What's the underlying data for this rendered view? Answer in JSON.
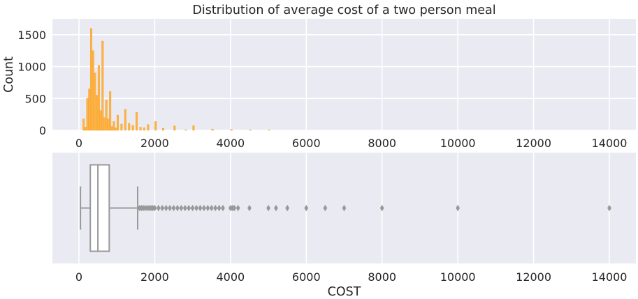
{
  "chart_data": [
    {
      "type": "histogram",
      "title": "Distribution of average cost of a two person meal",
      "xlabel": "",
      "ylabel": "Count",
      "xlim": [
        -700,
        14700
      ],
      "ylim": [
        0,
        1750
      ],
      "x_ticks": [
        0,
        2000,
        4000,
        6000,
        8000,
        10000,
        12000,
        14000
      ],
      "y_ticks": [
        0,
        500,
        1000,
        1500
      ],
      "grid": true,
      "bar_color": "#ffb347",
      "bar_edge_color": "#f0a020",
      "background": "#eaeaf2",
      "bin_width": 48,
      "bins": [
        {
          "x": 100,
          "count": 180
        },
        {
          "x": 150,
          "count": 50
        },
        {
          "x": 200,
          "count": 500
        },
        {
          "x": 250,
          "count": 650
        },
        {
          "x": 300,
          "count": 1600
        },
        {
          "x": 350,
          "count": 1250
        },
        {
          "x": 400,
          "count": 900
        },
        {
          "x": 450,
          "count": 550
        },
        {
          "x": 500,
          "count": 1020
        },
        {
          "x": 550,
          "count": 310
        },
        {
          "x": 600,
          "count": 1400
        },
        {
          "x": 650,
          "count": 200
        },
        {
          "x": 700,
          "count": 480
        },
        {
          "x": 750,
          "count": 180
        },
        {
          "x": 800,
          "count": 610
        },
        {
          "x": 850,
          "count": 60
        },
        {
          "x": 900,
          "count": 140
        },
        {
          "x": 950,
          "count": 40
        },
        {
          "x": 1000,
          "count": 240
        },
        {
          "x": 1100,
          "count": 100
        },
        {
          "x": 1200,
          "count": 330
        },
        {
          "x": 1300,
          "count": 110
        },
        {
          "x": 1400,
          "count": 80
        },
        {
          "x": 1500,
          "count": 280
        },
        {
          "x": 1600,
          "count": 50
        },
        {
          "x": 1700,
          "count": 40
        },
        {
          "x": 1800,
          "count": 90
        },
        {
          "x": 2000,
          "count": 140
        },
        {
          "x": 2200,
          "count": 30
        },
        {
          "x": 2500,
          "count": 70
        },
        {
          "x": 2800,
          "count": 10
        },
        {
          "x": 3000,
          "count": 75
        },
        {
          "x": 3500,
          "count": 20
        },
        {
          "x": 4000,
          "count": 15
        },
        {
          "x": 4500,
          "count": 10
        },
        {
          "x": 5000,
          "count": 8
        }
      ]
    },
    {
      "type": "boxplot",
      "xlabel": "COST",
      "xlim": [
        -700,
        14700
      ],
      "x_ticks": [
        0,
        2000,
        4000,
        6000,
        8000,
        10000,
        12000,
        14000
      ],
      "grid": true,
      "box_color": "#ffffff",
      "line_color": "#999999",
      "background": "#eaeaf2",
      "whisker_low": 40,
      "q1": 300,
      "median": 500,
      "q3": 800,
      "whisker_high": 1550,
      "outliers": [
        1600,
        1650,
        1700,
        1750,
        1800,
        1850,
        1900,
        1950,
        2000,
        2100,
        2200,
        2300,
        2400,
        2500,
        2600,
        2700,
        2800,
        2900,
        3000,
        3100,
        3200,
        3300,
        3400,
        3500,
        3600,
        3700,
        3800,
        4000,
        4050,
        4100,
        4200,
        4500,
        5000,
        5200,
        5500,
        6000,
        6500,
        7000,
        8000,
        10000,
        14000
      ]
    }
  ]
}
